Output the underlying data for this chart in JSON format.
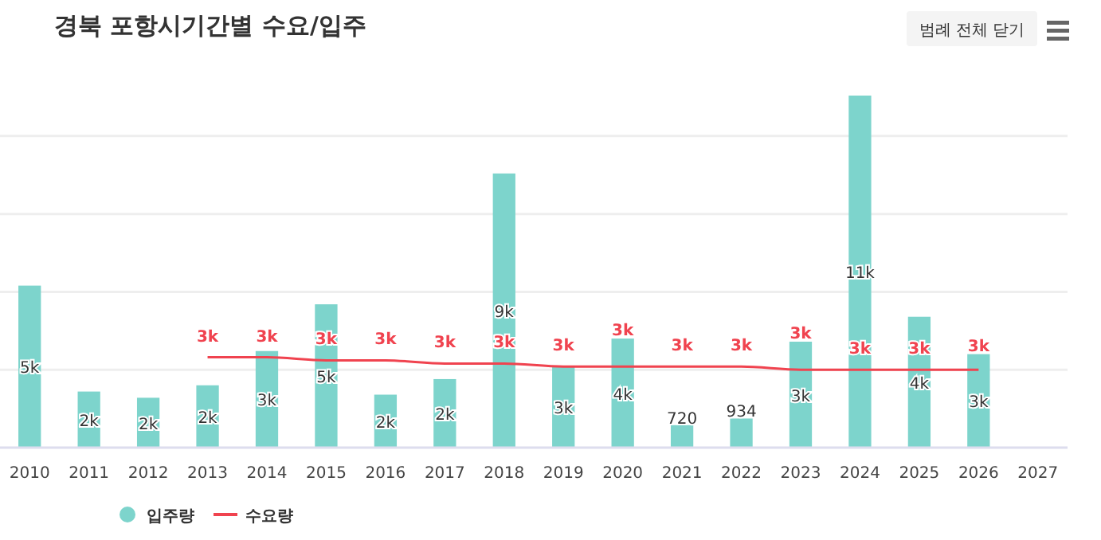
{
  "chart_data": {
    "type": "bar",
    "title": "경북 포항시기간별 수요/입주",
    "annotations": [
      "범례 전체 닫기"
    ],
    "categories": [
      "2010",
      "2011",
      "2012",
      "2013",
      "2014",
      "2015",
      "2016",
      "2017",
      "2018",
      "2019",
      "2020",
      "2021",
      "2022",
      "2023",
      "2024",
      "2025",
      "2026",
      "2027"
    ],
    "series": [
      {
        "name": "입주량",
        "color": "#7dd4cc",
        "values": [
          5200,
          1800,
          1600,
          2000,
          3100,
          4600,
          1700,
          2200,
          8800,
          2600,
          3500,
          720,
          934,
          3400,
          11300,
          4200,
          3000,
          null
        ],
        "value_labels": [
          "5k",
          "2k",
          "2k",
          "2k",
          "3k",
          "5k",
          "2k",
          "2k",
          "9k",
          "3k",
          "4k",
          "720",
          "934",
          "3k",
          "11k",
          "4k",
          "3k",
          null
        ]
      },
      {
        "name": "수요량",
        "type": "line",
        "color": "#f0434f",
        "values": [
          null,
          null,
          null,
          2900,
          2900,
          2800,
          2800,
          2700,
          2700,
          2600,
          2600,
          2600,
          2600,
          2500,
          2500,
          2500,
          2500,
          null
        ],
        "value_labels": [
          null,
          null,
          null,
          "3k",
          "3k",
          "3k",
          "3k",
          "3k",
          "3k",
          "3k",
          "3k",
          "3k",
          "3k",
          "3k",
          "3k",
          "3k",
          "3k",
          null
        ]
      }
    ],
    "yticks": [
      {
        "value": 2500,
        "label": null
      },
      {
        "value": 5000,
        "label": null
      },
      {
        "value": 7500,
        "label": null
      },
      {
        "value": 10000,
        "label": null
      }
    ],
    "grid": "y",
    "tick_labels": "x",
    "legend": "bottom",
    "marker": "none",
    "line_style": "solid"
  }
}
